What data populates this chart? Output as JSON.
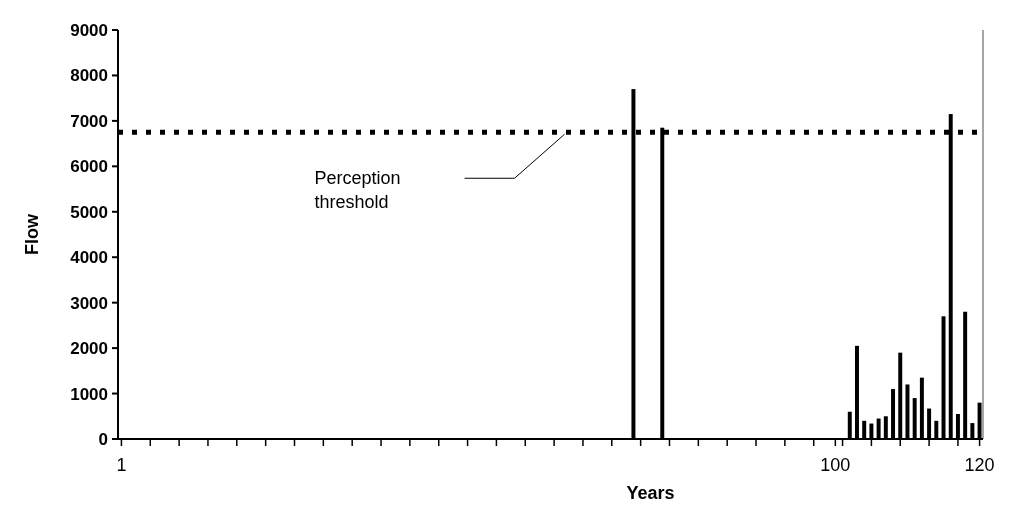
{
  "chart_data": {
    "type": "bar",
    "xlabel": "Years",
    "ylabel": "Flow",
    "categories": [
      "1",
      null,
      null,
      null,
      null,
      null,
      null,
      null,
      null,
      null,
      null,
      null,
      null,
      null,
      null,
      null,
      null,
      null,
      null,
      null,
      null,
      null,
      null,
      null,
      null,
      null,
      null,
      null,
      null,
      null,
      null,
      null,
      null,
      null,
      null,
      null,
      null,
      null,
      null,
      null,
      null,
      null,
      null,
      null,
      null,
      null,
      null,
      null,
      null,
      null,
      null,
      null,
      null,
      null,
      null,
      null,
      null,
      null,
      null,
      null,
      null,
      null,
      null,
      null,
      null,
      null,
      null,
      null,
      null,
      null,
      null,
      null,
      null,
      null,
      null,
      null,
      null,
      null,
      null,
      null,
      null,
      null,
      null,
      null,
      null,
      null,
      null,
      null,
      null,
      null,
      null,
      null,
      null,
      null,
      null,
      null,
      null,
      null,
      null,
      "100",
      null,
      null,
      null,
      null,
      null,
      null,
      null,
      null,
      null,
      null,
      null,
      null,
      null,
      null,
      null,
      null,
      null,
      null,
      null,
      "120"
    ],
    "values": [
      null,
      null,
      null,
      null,
      null,
      null,
      null,
      null,
      null,
      null,
      null,
      null,
      null,
      null,
      null,
      null,
      null,
      null,
      null,
      null,
      null,
      null,
      null,
      null,
      null,
      null,
      null,
      null,
      null,
      null,
      null,
      null,
      null,
      null,
      null,
      null,
      null,
      null,
      null,
      null,
      null,
      null,
      null,
      null,
      null,
      null,
      null,
      null,
      null,
      null,
      null,
      null,
      null,
      null,
      null,
      null,
      null,
      null,
      null,
      null,
      null,
      null,
      null,
      null,
      null,
      null,
      null,
      null,
      null,
      null,
      null,
      7700,
      null,
      null,
      null,
      6850,
      null,
      null,
      null,
      null,
      null,
      null,
      null,
      null,
      null,
      null,
      null,
      null,
      null,
      null,
      null,
      null,
      null,
      null,
      null,
      null,
      null,
      null,
      null,
      null,
      null,
      600,
      2050,
      400,
      340,
      450,
      500,
      1100,
      1900,
      1200,
      900,
      1350,
      670,
      400,
      2700,
      7150,
      550,
      2800,
      350,
      800
    ],
    "color": "#000000",
    "ylim": [
      0,
      9000
    ],
    "yticks": [
      0,
      1000,
      2000,
      3000,
      4000,
      5000,
      6000,
      7000,
      8000,
      9000
    ],
    "ref_lines": [
      {
        "axis": "y",
        "value": 6750,
        "label": "Perception threshold",
        "line_style": "dotted",
        "color": "#000000"
      }
    ],
    "grid": false
  }
}
